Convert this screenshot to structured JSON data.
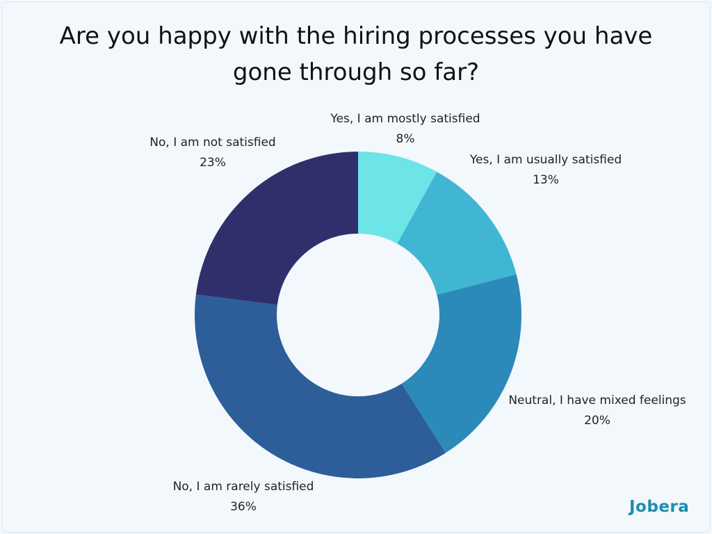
{
  "chart_data": {
    "type": "pie",
    "variant": "donut",
    "title": "Are you happy with the hiring processes you have gone through so far?",
    "title_lines": [
      "Are you happy with the hiring processes you have",
      "gone through so far?"
    ],
    "categories": [
      "Yes, I am mostly satisfied",
      "Yes, I am usually satisfied",
      "Neutral, I have mixed feelings",
      "No, I am rarely satisfied",
      "No, I am not satisfied"
    ],
    "values": [
      8,
      13,
      20,
      36,
      23
    ],
    "value_labels": [
      "8%",
      "13%",
      "20%",
      "36%",
      "23%"
    ],
    "colors": [
      "#6ce4e8",
      "#40b6d3",
      "#2c8aba",
      "#2d5e99",
      "#2f306b"
    ],
    "start_angle": "12 o'clock",
    "direction": "clockwise",
    "legend": "none"
  },
  "branding": {
    "logo": "Jobera",
    "logo_color": "#1a8eaf"
  },
  "background": "#f3f8fc"
}
